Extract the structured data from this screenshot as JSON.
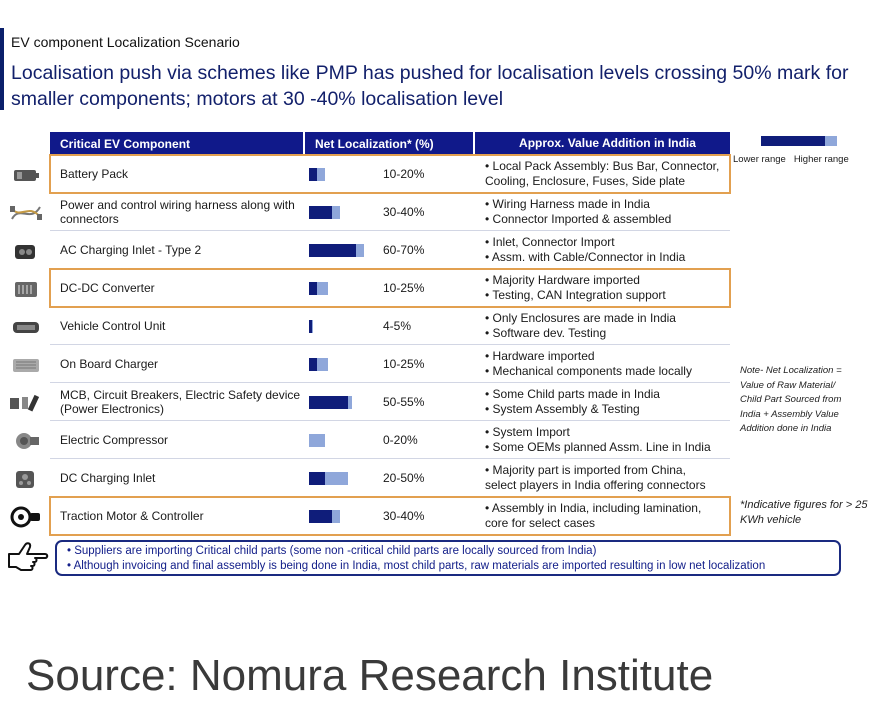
{
  "subtitle": "EV component Localization Scenario",
  "headline": "Localisation push via schemes like PMP has pushed for localisation levels crossing 50% mark for smaller components; motors at 30 -40% localisation level",
  "colors": {
    "header_bg": "#10198a",
    "lower_bar": "#0f1d7a",
    "higher_bar": "#8fa7da",
    "highlight_border": "#e2a050"
  },
  "chart_data": {
    "type": "table",
    "title": "EV component Localization Scenario",
    "columns": [
      "Critical EV Component",
      "Net Localization* (%)",
      "Approx. Value Addition in India"
    ],
    "legend": [
      "Lower range",
      "Higher range"
    ],
    "rows": [
      {
        "component": "Battery Pack",
        "low": 10,
        "high": 20,
        "label": "10-20%",
        "highlight": true,
        "icon": "battery-pack-icon",
        "value_addition": [
          "• Local Pack Assembly: Bus Bar, Connector,",
          "Cooling, Enclosure, Fuses, Side plate"
        ]
      },
      {
        "component": "Power and control wiring harness along with connectors",
        "low": 30,
        "high": 40,
        "label": "30-40%",
        "highlight": false,
        "icon": "wiring-harness-icon",
        "value_addition": [
          "• Wiring Harness made in India",
          "• Connector Imported & assembled"
        ]
      },
      {
        "component": "AC Charging Inlet - Type 2",
        "low": 60,
        "high": 70,
        "label": "60-70%",
        "highlight": false,
        "icon": "ac-charging-inlet-icon",
        "value_addition": [
          "• Inlet, Connector Import",
          "• Assm. with Cable/Connector in India"
        ]
      },
      {
        "component": "DC-DC Converter",
        "low": 10,
        "high": 25,
        "label": "10-25%",
        "highlight": true,
        "icon": "dc-dc-converter-icon",
        "value_addition": [
          "• Majority Hardware imported",
          "• Testing, CAN Integration support"
        ]
      },
      {
        "component": "Vehicle Control Unit",
        "low": 4,
        "high": 5,
        "label": "4-5%",
        "highlight": false,
        "icon": "vehicle-control-unit-icon",
        "value_addition": [
          "• Only Enclosures are made in India",
          "• Software dev. Testing"
        ]
      },
      {
        "component": "On Board Charger",
        "low": 10,
        "high": 25,
        "label": "10-25%",
        "highlight": false,
        "icon": "on-board-charger-icon",
        "value_addition": [
          "• Hardware imported",
          "• Mechanical components made locally"
        ]
      },
      {
        "component": "MCB, Circuit Breakers, Electric Safety device (Power Electronics)",
        "low": 50,
        "high": 55,
        "label": "50-55%",
        "highlight": false,
        "icon": "circuit-breaker-icon",
        "value_addition": [
          "• Some Child parts made in India",
          "• System Assembly & Testing"
        ]
      },
      {
        "component": "Electric Compressor",
        "low": 0,
        "high": 20,
        "label": "0-20%",
        "highlight": false,
        "icon": "electric-compressor-icon",
        "value_addition": [
          "• System Import",
          "• Some OEMs planned Assm. Line in India"
        ]
      },
      {
        "component": "DC Charging Inlet",
        "low": 20,
        "high": 50,
        "label": "20-50%",
        "highlight": false,
        "icon": "dc-charging-inlet-icon",
        "value_addition": [
          "• Majority part is imported from China,",
          "select players in India offering connectors"
        ]
      },
      {
        "component": "Traction Motor & Controller",
        "low": 30,
        "high": 40,
        "label": "30-40%",
        "highlight": true,
        "icon": "traction-motor-icon",
        "value_addition": [
          "• Assembly in India, including lamination,",
          "core for select cases"
        ]
      }
    ]
  },
  "note": "Note- Net Localization = Value of Raw Material/ Child Part Sourced from India + Assembly Value Addition done in India",
  "indicative": "*Indicative figures for > 25 KWh vehicle",
  "footnotes": [
    "• Suppliers are importing Critical child parts (some non -critical child parts are locally sourced from India)",
    "• Although invoicing and final assembly is being done in India, most child parts, raw materials are imported resulting in low net localization"
  ],
  "source": "Source: Nomura Research Institute"
}
